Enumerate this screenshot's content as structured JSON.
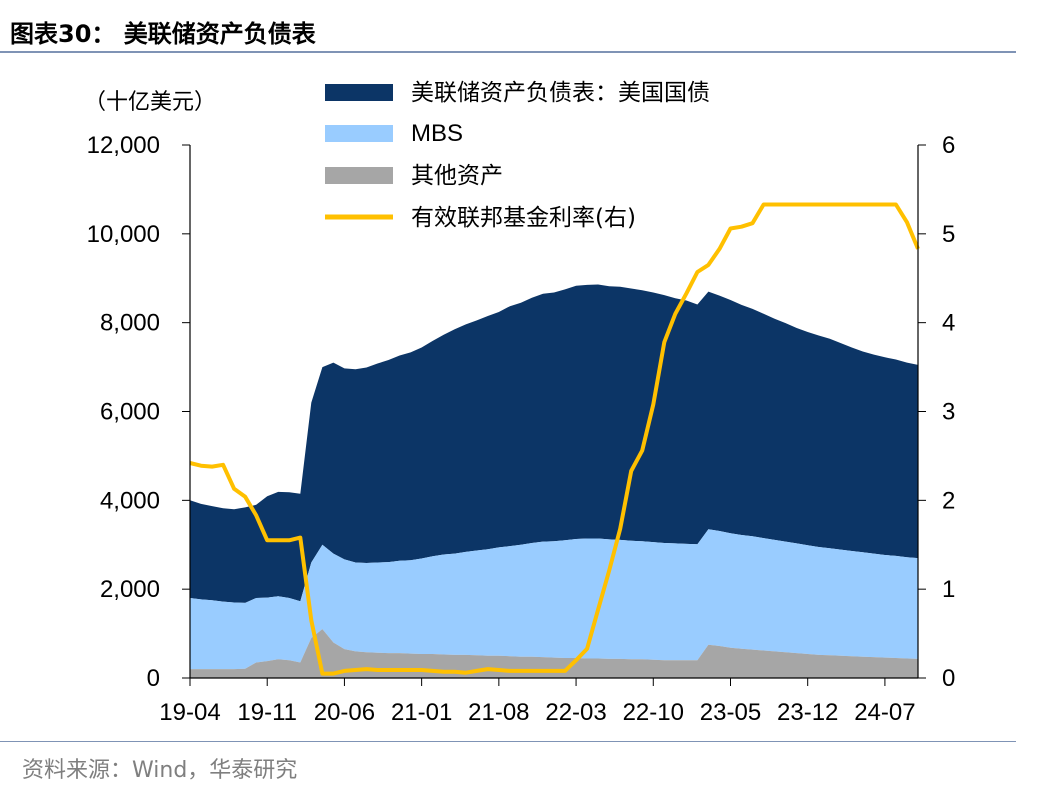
{
  "title": "图表30： 美联储资产负债表",
  "unit_label": "（十亿美元）",
  "source": "资料来源：Wind，华泰研究",
  "colors": {
    "treasury": "#0c3566",
    "mbs": "#99ccff",
    "other": "#a6a6a6",
    "fed_funds": "#ffc000",
    "rule": "#7f93b5"
  },
  "chart_data": {
    "type": "area",
    "title": "",
    "xlabel": "",
    "ylabel": "（十亿美元）",
    "ylim": [
      0,
      12000
    ],
    "y2lim": [
      0,
      6
    ],
    "y_ticks": [
      "0",
      "2,000",
      "4,000",
      "6,000",
      "8,000",
      "10,000",
      "12,000"
    ],
    "y2_ticks": [
      "0",
      "1",
      "2",
      "3",
      "4",
      "5",
      "6"
    ],
    "x_ticks": [
      "19-04",
      "19-11",
      "20-06",
      "21-01",
      "21-08",
      "22-03",
      "22-10",
      "23-05",
      "23-12",
      "24-07"
    ],
    "x_range": [
      "2019-04",
      "2024-10"
    ],
    "grid": false,
    "legend_position": "top-center",
    "legend": [
      "美联储资产负债表：美国国债",
      "MBS",
      "其他资产",
      "有效联邦基金利率(右)"
    ],
    "x": [
      "2019-04",
      "2019-05",
      "2019-06",
      "2019-07",
      "2019-08",
      "2019-09",
      "2019-10",
      "2019-11",
      "2019-12",
      "2020-01",
      "2020-02",
      "2020-03",
      "2020-04",
      "2020-05",
      "2020-06",
      "2020-07",
      "2020-08",
      "2020-09",
      "2020-10",
      "2020-11",
      "2020-12",
      "2021-01",
      "2021-02",
      "2021-03",
      "2021-04",
      "2021-05",
      "2021-06",
      "2021-07",
      "2021-08",
      "2021-09",
      "2021-10",
      "2021-11",
      "2021-12",
      "2022-01",
      "2022-02",
      "2022-03",
      "2022-04",
      "2022-05",
      "2022-06",
      "2022-07",
      "2022-08",
      "2022-09",
      "2022-10",
      "2022-11",
      "2022-12",
      "2023-01",
      "2023-02",
      "2023-03",
      "2023-04",
      "2023-05",
      "2023-06",
      "2023-07",
      "2023-08",
      "2023-09",
      "2023-10",
      "2023-11",
      "2023-12",
      "2024-01",
      "2024-02",
      "2024-03",
      "2024-04",
      "2024-05",
      "2024-06",
      "2024-07",
      "2024-08",
      "2024-09",
      "2024-10"
    ],
    "series": [
      {
        "name": "美联储资产负债表：美国国债",
        "axis": "left",
        "kind": "stacked-area",
        "values": [
          2200,
          2150,
          2120,
          2100,
          2100,
          2150,
          2100,
          2280,
          2350,
          2380,
          2420,
          3600,
          4000,
          4300,
          4300,
          4350,
          4400,
          4480,
          4550,
          4620,
          4680,
          4750,
          4850,
          4950,
          5050,
          5120,
          5180,
          5250,
          5300,
          5400,
          5450,
          5520,
          5580,
          5600,
          5650,
          5700,
          5710,
          5720,
          5700,
          5700,
          5680,
          5650,
          5620,
          5580,
          5520,
          5480,
          5400,
          5350,
          5300,
          5250,
          5180,
          5120,
          5050,
          4980,
          4920,
          4850,
          4800,
          4760,
          4720,
          4650,
          4580,
          4520,
          4480,
          4450,
          4420,
          4380,
          4350
        ]
      },
      {
        "name": "MBS",
        "axis": "left",
        "kind": "stacked-area",
        "values": [
          1600,
          1570,
          1550,
          1520,
          1500,
          1480,
          1450,
          1430,
          1420,
          1400,
          1380,
          1700,
          1900,
          2000,
          2020,
          2000,
          2010,
          2030,
          2050,
          2080,
          2100,
          2150,
          2200,
          2250,
          2280,
          2320,
          2360,
          2400,
          2440,
          2480,
          2520,
          2560,
          2600,
          2620,
          2650,
          2680,
          2700,
          2700,
          2690,
          2680,
          2670,
          2660,
          2650,
          2640,
          2630,
          2620,
          2610,
          2600,
          2590,
          2580,
          2560,
          2550,
          2530,
          2510,
          2490,
          2470,
          2450,
          2430,
          2410,
          2390,
          2370,
          2350,
          2330,
          2310,
          2300,
          2280,
          2270
        ]
      },
      {
        "name": "其他资产",
        "axis": "left",
        "kind": "stacked-area",
        "values": [
          200,
          200,
          200,
          200,
          200,
          210,
          350,
          380,
          420,
          400,
          350,
          900,
          1100,
          800,
          650,
          600,
          580,
          570,
          560,
          560,
          550,
          540,
          540,
          530,
          520,
          520,
          510,
          500,
          500,
          490,
          480,
          480,
          470,
          460,
          450,
          450,
          440,
          440,
          430,
          430,
          420,
          420,
          410,
          400,
          400,
          400,
          400,
          750,
          720,
          680,
          660,
          640,
          620,
          600,
          580,
          560,
          540,
          520,
          510,
          500,
          490,
          480,
          470,
          460,
          450,
          440,
          430
        ]
      },
      {
        "name": "有效联邦基金利率(右)",
        "axis": "right",
        "kind": "line",
        "values": [
          2.42,
          2.39,
          2.38,
          2.4,
          2.13,
          2.04,
          1.83,
          1.55,
          1.55,
          1.55,
          1.58,
          0.65,
          0.05,
          0.05,
          0.08,
          0.09,
          0.1,
          0.09,
          0.09,
          0.09,
          0.09,
          0.09,
          0.08,
          0.07,
          0.07,
          0.06,
          0.08,
          0.1,
          0.09,
          0.08,
          0.08,
          0.08,
          0.08,
          0.08,
          0.08,
          0.2,
          0.33,
          0.77,
          1.21,
          1.68,
          2.33,
          2.56,
          3.08,
          3.78,
          4.1,
          4.33,
          4.57,
          4.65,
          4.83,
          5.06,
          5.08,
          5.12,
          5.33,
          5.33,
          5.33,
          5.33,
          5.33,
          5.33,
          5.33,
          5.33,
          5.33,
          5.33,
          5.33,
          5.33,
          5.33,
          5.13,
          4.83
        ]
      }
    ]
  }
}
